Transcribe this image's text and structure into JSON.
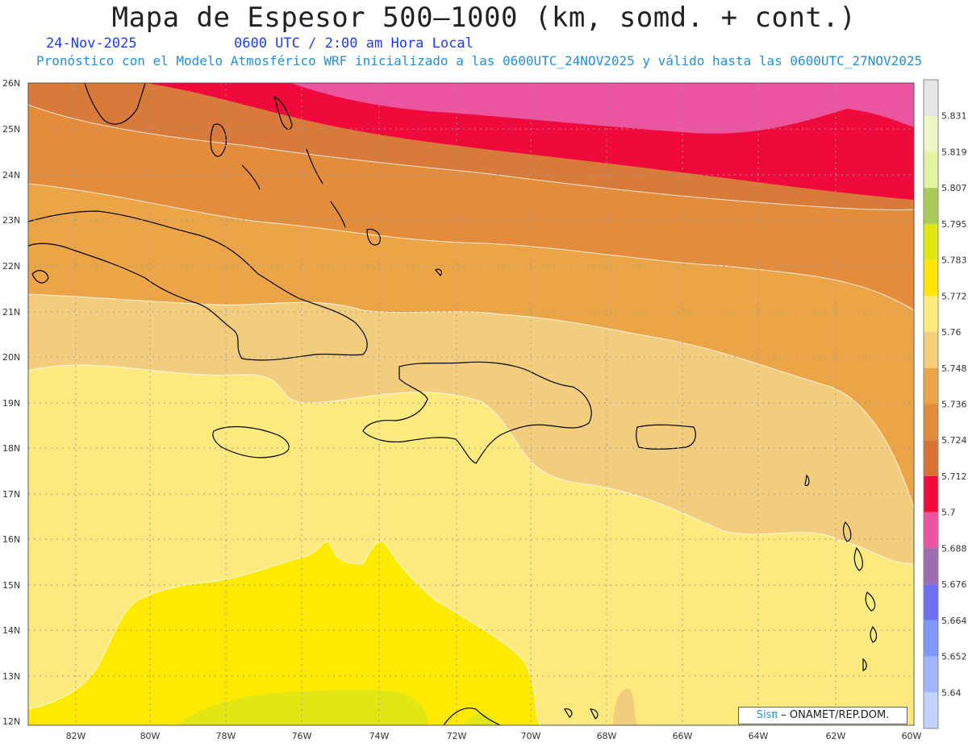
{
  "header": {
    "title": "Mapa de Espesor 500—1000 (km, somd. + cont.)",
    "date": "24-Nov-2025",
    "time": "0600 UTC / 2:00 am Hora Local",
    "subtitle": "Pronóstico con el Modelo Atmosférico WRF inicializado a las 0600UTC_24NOV2025 y válido hasta las  0600UTC_27NOV2025"
  },
  "axes": {
    "lat_labels": [
      "26N",
      "25N",
      "24N",
      "23N",
      "22N",
      "21N",
      "20N",
      "19N",
      "18N",
      "17N",
      "16N",
      "15N",
      "14N",
      "13N",
      "12N"
    ],
    "lon_labels": [
      "82W",
      "80W",
      "78W",
      "76W",
      "74W",
      "72W",
      "70W",
      "68W",
      "66W",
      "64W",
      "62W",
      "60W"
    ]
  },
  "colorbar": {
    "labels": [
      "5.831",
      "5.819",
      "5.807",
      "5.795",
      "5.783",
      "5.772",
      "5.76",
      "5.748",
      "5.736",
      "5.724",
      "5.712",
      "5.7",
      "5.688",
      "5.676",
      "5.664",
      "5.652",
      "5.64"
    ],
    "colors": [
      "#e6e6e6",
      "#f0f5c8",
      "#e1f5a0",
      "#aacd5a",
      "#e1e614",
      "#ffe600",
      "#ffeb7d",
      "#f5cd7d",
      "#eba546",
      "#e18c3c",
      "#d77337",
      "#f00a3c",
      "#eb55a0",
      "#9b6eaf",
      "#6e6ef5",
      "#8296ff",
      "#a0b4ff",
      "#c3d2ff"
    ]
  },
  "map": {
    "bands": [
      {
        "name": "5.688-5.700",
        "color": "#eb55a0"
      },
      {
        "name": "5.700-5.712",
        "color": "#f00a3c"
      },
      {
        "name": "5.712-5.724",
        "color": "#d77a3a"
      },
      {
        "name": "5.724-5.736",
        "color": "#e38c3c"
      },
      {
        "name": "5.736-5.748",
        "color": "#eba546"
      },
      {
        "name": "5.748-5.760",
        "color": "#f3cd7e"
      },
      {
        "name": "5.760-5.772",
        "color": "#fdea7f"
      },
      {
        "name": "5.772-5.783",
        "color": "#fdea00"
      },
      {
        "name": "5.783-5.795",
        "color": "#e1e614"
      }
    ]
  },
  "credit": {
    "sis": "Sisπ",
    "org": " – ONAMET/REP.DOM."
  }
}
